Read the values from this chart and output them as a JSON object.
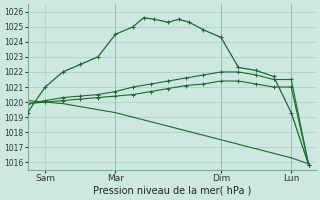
{
  "xlabel": "Pression niveau de la mer( hPa )",
  "background_color": "#cde8e0",
  "grid_color": "#9fc8bb",
  "line_color": "#1a6b2a",
  "ylim": [
    1015.5,
    1026.5
  ],
  "yticks": [
    1016,
    1017,
    1018,
    1019,
    1020,
    1021,
    1022,
    1023,
    1024,
    1025,
    1026
  ],
  "series": [
    {
      "x": [
        0.0,
        0.5,
        1.0,
        1.5,
        2.0,
        2.5,
        3.0,
        3.3,
        3.6,
        4.0,
        4.3,
        4.6,
        5.0,
        5.5,
        6.0,
        6.5,
        7.0,
        7.5,
        8.0
      ],
      "y": [
        1019.3,
        1021.0,
        1022.0,
        1022.5,
        1023.0,
        1024.5,
        1025.0,
        1025.6,
        1025.5,
        1025.3,
        1025.5,
        1025.3,
        1024.8,
        1024.3,
        1022.3,
        1022.1,
        1021.7,
        1019.3,
        1015.8
      ]
    },
    {
      "x": [
        0.0,
        0.5,
        1.0,
        1.5,
        2.0,
        2.5,
        3.0,
        3.5,
        4.0,
        4.5,
        5.0,
        5.5,
        6.0,
        6.5,
        7.0,
        7.5,
        8.0
      ],
      "y": [
        1019.9,
        1020.1,
        1020.3,
        1020.4,
        1020.5,
        1020.7,
        1021.0,
        1021.2,
        1021.4,
        1021.6,
        1021.8,
        1022.0,
        1022.0,
        1021.8,
        1021.5,
        1021.5,
        1015.8
      ]
    },
    {
      "x": [
        0.0,
        0.5,
        1.0,
        1.5,
        2.0,
        2.5,
        3.0,
        3.5,
        4.0,
        4.5,
        5.0,
        5.5,
        6.0,
        6.5,
        7.0,
        7.5,
        8.0
      ],
      "y": [
        1019.9,
        1020.0,
        1020.1,
        1020.2,
        1020.3,
        1020.4,
        1020.5,
        1020.7,
        1020.9,
        1021.1,
        1021.2,
        1021.4,
        1021.4,
        1021.2,
        1021.0,
        1021.0,
        1015.8
      ]
    },
    {
      "x": [
        0.0,
        0.5,
        1.0,
        1.5,
        2.0,
        2.5,
        3.0,
        3.5,
        4.0,
        4.5,
        5.0,
        5.5,
        6.0,
        6.5,
        7.0,
        7.5,
        8.0
      ],
      "y": [
        1020.1,
        1020.0,
        1019.9,
        1019.7,
        1019.5,
        1019.3,
        1019.0,
        1018.7,
        1018.4,
        1018.1,
        1017.8,
        1017.5,
        1017.2,
        1016.9,
        1016.6,
        1016.3,
        1015.9
      ]
    }
  ],
  "vline_positions": [
    0.0,
    2.5,
    5.5,
    7.5
  ],
  "xtick_positions": [
    0.5,
    2.5,
    5.5,
    7.5
  ],
  "xtick_labels": [
    "Sam",
    "Mar",
    "Dim",
    "Lun"
  ],
  "xlabel_fontsize": 7,
  "ytick_fontsize": 5.5,
  "xtick_fontsize": 6.5
}
